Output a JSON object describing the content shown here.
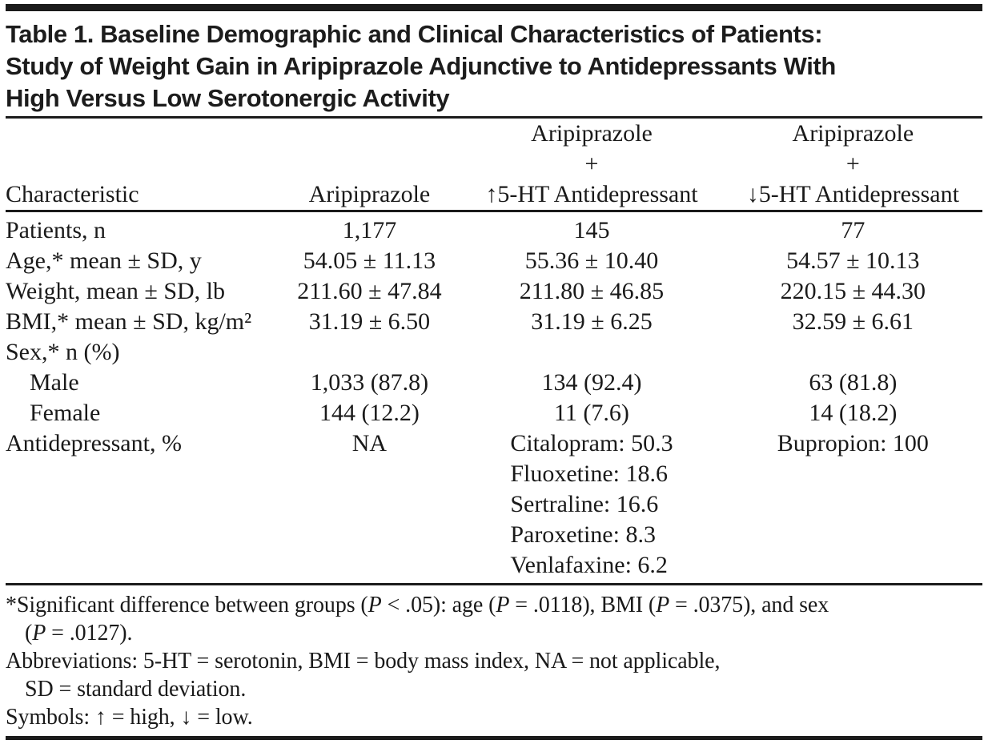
{
  "colors": {
    "background": "#ffffff",
    "text": "#1a1a1a",
    "rule": "#1b1b1b"
  },
  "title": {
    "line1": "Table 1. Baseline Demographic and Clinical Characteristics of Patients:",
    "line2": "Study of Weight Gain in Aripiprazole Adjunctive to Antidepressants With",
    "line3": "High Versus Low Serotonergic Activity"
  },
  "table": {
    "header": [
      {
        "id": "characteristic",
        "lines": [
          "Characteristic"
        ]
      },
      {
        "id": "aripiprazole",
        "lines": [
          "Aripiprazole"
        ]
      },
      {
        "id": "aripiprazole-high-5ht",
        "lines": [
          "Aripiprazole",
          "+",
          "↑5-HT Antidepressant"
        ]
      },
      {
        "id": "aripiprazole-low-5ht",
        "lines": [
          "Aripiprazole",
          "+",
          "↓5-HT Antidepressant"
        ]
      }
    ],
    "rows": [
      {
        "label": "Patients, n",
        "indent": false,
        "cells": [
          "1,177",
          "145",
          "77"
        ]
      },
      {
        "label": "Age,* mean ± SD, y",
        "indent": false,
        "cells": [
          "54.05 ± 11.13",
          "55.36 ± 10.40",
          "54.57 ± 10.13"
        ]
      },
      {
        "label": "Weight, mean ± SD, lb",
        "indent": false,
        "cells": [
          "211.60 ± 47.84",
          "211.80 ± 46.85",
          "220.15 ± 44.30"
        ]
      },
      {
        "label": "BMI,* mean ± SD, kg/m²",
        "indent": false,
        "cells": [
          "31.19 ± 6.50",
          "31.19 ± 6.25",
          "32.59 ± 6.61"
        ]
      },
      {
        "label": "Sex,* n (%)",
        "indent": false,
        "cells": [
          "",
          "",
          ""
        ]
      },
      {
        "label": "Male",
        "indent": true,
        "cells": [
          "1,033 (87.8)",
          "134 (92.4)",
          "63 (81.8)"
        ]
      },
      {
        "label": "Female",
        "indent": true,
        "cells": [
          "144 (12.2)",
          "11 (7.6)",
          "14 (18.2)"
        ]
      },
      {
        "label": "Antidepressant, %",
        "indent": false,
        "cells": [
          "NA",
          [
            "Citalopram: 50.3",
            "Fluoxetine: 18.6",
            "Sertraline: 16.6",
            "Paroxetine: 8.3",
            "Venlafaxine: 6.2"
          ],
          [
            "Bupropion: 100"
          ]
        ]
      }
    ]
  },
  "footnotes": [
    {
      "lines": [
        {
          "indent": false,
          "segments": [
            {
              "t": "*Significant difference between groups ("
            },
            {
              "t": "P",
              "italic": true
            },
            {
              "t": " < .05): age ("
            },
            {
              "t": "P",
              "italic": true
            },
            {
              "t": " = .0118), BMI ("
            },
            {
              "t": "P",
              "italic": true
            },
            {
              "t": " = .0375), and sex"
            }
          ]
        },
        {
          "indent": true,
          "segments": [
            {
              "t": "("
            },
            {
              "t": "P",
              "italic": true
            },
            {
              "t": " = .0127)."
            }
          ]
        }
      ]
    },
    {
      "lines": [
        {
          "indent": false,
          "segments": [
            {
              "t": "Abbreviations: 5-HT = serotonin, BMI = body mass index, NA = not applicable,"
            }
          ]
        },
        {
          "indent": true,
          "segments": [
            {
              "t": "SD = standard deviation."
            }
          ]
        }
      ]
    },
    {
      "lines": [
        {
          "indent": false,
          "segments": [
            {
              "t": "Symbols: ↑ = high, ↓ = low."
            }
          ]
        }
      ]
    }
  ]
}
